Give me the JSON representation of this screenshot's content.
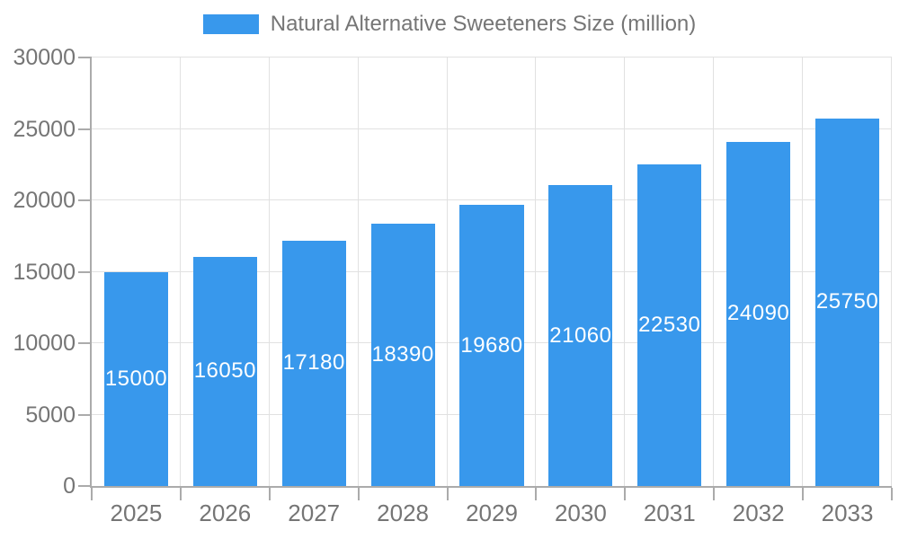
{
  "legend": {
    "label": "Natural Alternative Sweeteners Size (million)"
  },
  "colors": {
    "bar": "#3898EC",
    "grid": "#E1E1E1",
    "axis": "#ABABAB",
    "text": "#757575",
    "bar_label": "#FFFFFF",
    "background": "#FFFFFF"
  },
  "chart_data": {
    "type": "bar",
    "title": "",
    "series_name": "Natural Alternative Sweeteners Size (million)",
    "categories": [
      "2025",
      "2026",
      "2027",
      "2028",
      "2029",
      "2030",
      "2031",
      "2032",
      "2033"
    ],
    "values": [
      15000,
      16050,
      17180,
      18390,
      19680,
      21060,
      22530,
      24090,
      25750
    ],
    "bar_labels": [
      "15000",
      "16050",
      "17180",
      "18390",
      "19680",
      "21060",
      "22530",
      "24090",
      "25750"
    ],
    "xlabel": "",
    "ylabel": "",
    "ylim": [
      0,
      30000
    ],
    "yticks": [
      0,
      5000,
      10000,
      15000,
      20000,
      25000,
      30000
    ],
    "ytick_labels": [
      "0",
      "5000",
      "10000",
      "15000",
      "20000",
      "25000",
      "30000"
    ],
    "grid": true,
    "legend_position": "top",
    "value_label_position": "inside-center"
  }
}
